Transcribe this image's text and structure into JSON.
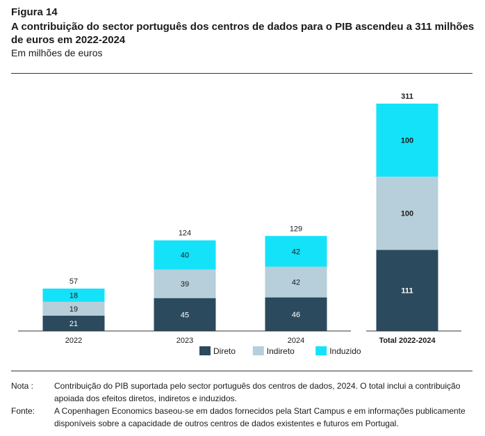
{
  "figure": {
    "label": "Figura 14",
    "title": "A contribuição do sector português dos centros de dados para o PIB ascendeu a 311 milhões de euros em 2022-2024",
    "subtitle": "Em milhões de euros"
  },
  "chart_data": {
    "type": "bar",
    "stacked": true,
    "categories": [
      "2022",
      "2023",
      "2024",
      "Total 2022-2024"
    ],
    "series": [
      {
        "name": "Direto",
        "values": [
          21,
          45,
          46,
          111
        ],
        "color": "#2b4a5e"
      },
      {
        "name": "Indireto",
        "values": [
          19,
          39,
          42,
          100
        ],
        "color": "#b6cfda"
      },
      {
        "name": "Induzido",
        "values": [
          18,
          40,
          42,
          100
        ],
        "color": "#14e2f9"
      }
    ],
    "totals": [
      "57",
      "124",
      "129",
      "311"
    ],
    "segment_labels": [
      [
        "21",
        "45",
        "46",
        "111"
      ],
      [
        "19",
        "39",
        "42",
        "100"
      ],
      [
        "18",
        "40",
        "42",
        "100"
      ]
    ],
    "ylim": [
      0,
      311
    ],
    "legend_position": "bottom",
    "grid": false
  },
  "notes": {
    "nota_key": "Nota :",
    "nota_text": "Contribuição do PIB suportada pelo sector português dos centros de dados, 2024. O total inclui a contribuição apoiada dos efeitos diretos, indiretos e induzidos.",
    "fonte_key": "Fonte:",
    "fonte_text": "A Copenhagen Economics baseou-se em dados fornecidos pela Start Campus e em informações publicamente disponíveis sobre a capacidade de outros centros de dados existentes e futuros em Portugal."
  }
}
